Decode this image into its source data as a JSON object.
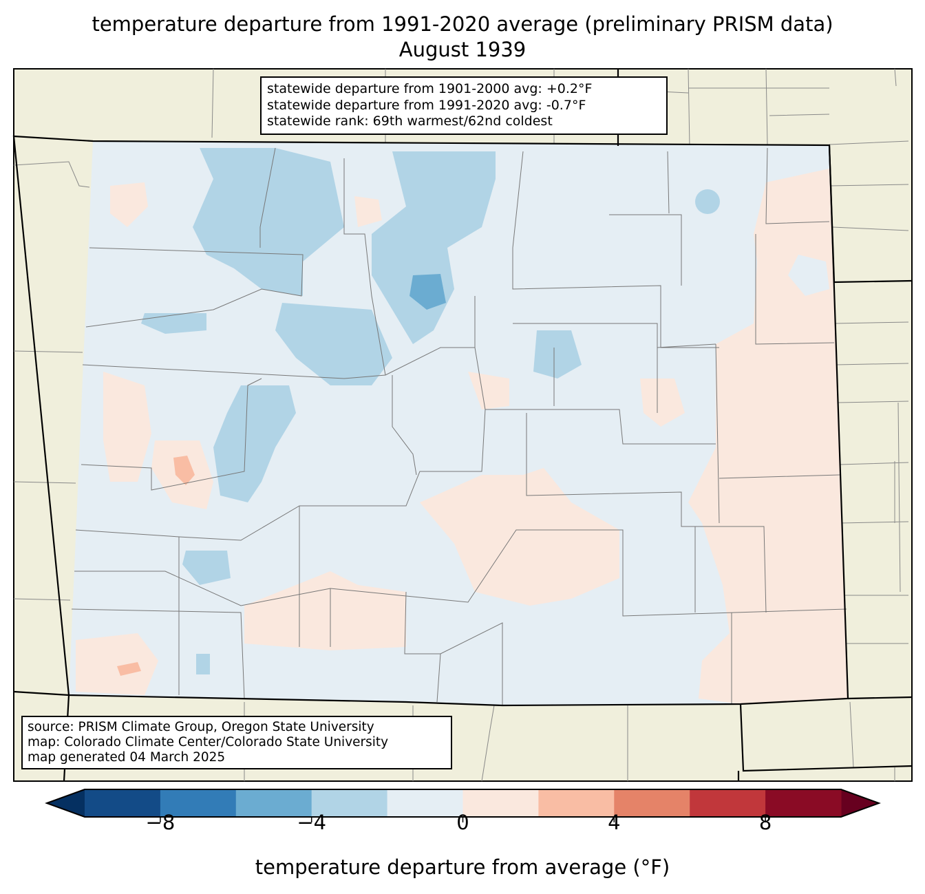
{
  "title": {
    "line1": "temperature departure from 1991-2020 average (preliminary PRISM data)",
    "line2": "August 1939"
  },
  "info_box": {
    "lines": [
      "statewide departure from 1901-2000 avg: +0.2°F",
      "statewide departure from 1991-2020 avg: -0.7°F",
      "statewide rank: 69th warmest/62nd coldest"
    ]
  },
  "source_box": {
    "lines": [
      "source: PRISM Climate Group, Oregon State University",
      "map: Colorado Climate Center/Colorado State University",
      "map generated 04 March 2025"
    ]
  },
  "colorbar": {
    "label": "temperature departure from average (°F)",
    "bounds": [
      -10,
      -8,
      -6,
      -4,
      -2,
      0,
      2,
      4,
      6,
      8,
      10
    ],
    "colors": [
      "#134b87",
      "#327cb7",
      "#6bacd1",
      "#b1d4e6",
      "#e5eef4",
      "#fae8de",
      "#f9bda4",
      "#e58368",
      "#c1373b",
      "#8a0b25"
    ],
    "under_color": "#053061",
    "over_color": "#67001f",
    "ticks": [
      "−8",
      "−4",
      "0",
      "4",
      "8"
    ],
    "tick_values": [
      -8,
      -4,
      0,
      4,
      8
    ]
  },
  "colors": {
    "land": "#f0efdc",
    "near_normal_cool": "#e5eef4",
    "cool": "#b1d4e6",
    "cooler": "#6bacd1",
    "warm": "#fae8de",
    "warmer": "#f9bda4"
  }
}
